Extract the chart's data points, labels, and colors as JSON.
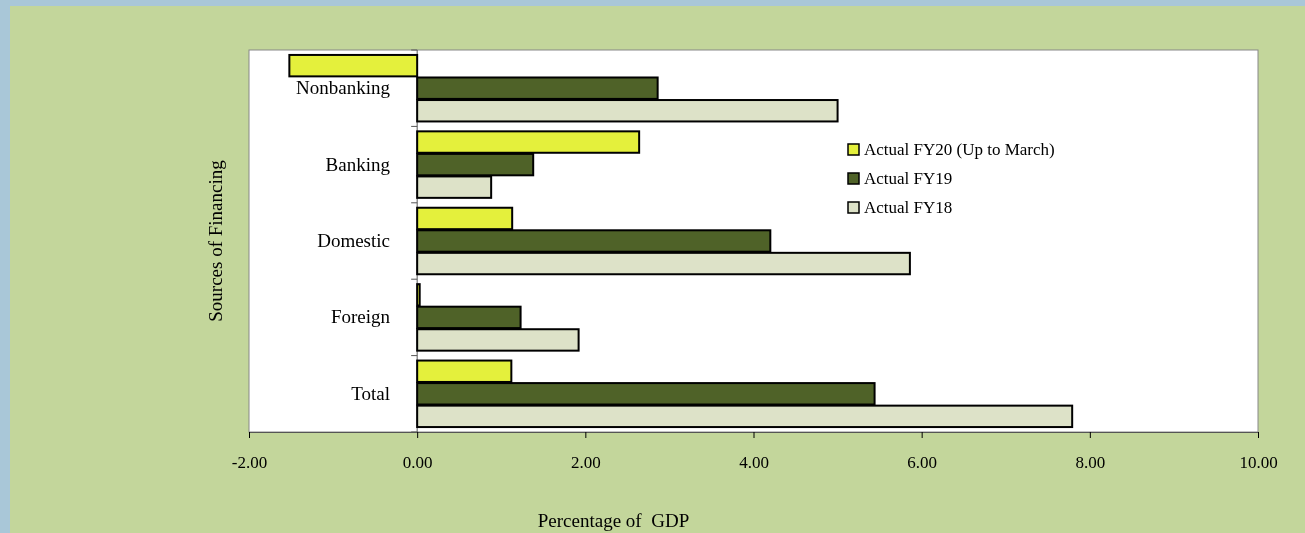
{
  "chart_data": {
    "type": "bar",
    "orientation": "horizontal",
    "xlabel": "Percentage of  GDP",
    "ylabel": "Sources of Financing",
    "categories": [
      "Nonbanking",
      "Banking",
      "Domestic",
      "Foreign",
      "Total"
    ],
    "series": [
      {
        "name": "Actual FY20 (Up to March)",
        "color": "#e4f03c",
        "values": [
          -1.52,
          2.64,
          1.13,
          0.03,
          1.12
        ]
      },
      {
        "name": "Actual FY19",
        "color": "#4f6228",
        "values": [
          2.86,
          1.38,
          4.2,
          1.23,
          5.44
        ]
      },
      {
        "name": "Actual FY18",
        "color": "#dde2c8",
        "values": [
          5.0,
          0.88,
          5.86,
          1.92,
          7.79
        ]
      }
    ],
    "xlim": [
      -2,
      10
    ],
    "xticks": [
      {
        "value": -2,
        "label": "-2.00"
      },
      {
        "value": 0,
        "label": "0.00"
      },
      {
        "value": 2,
        "label": "2.00"
      },
      {
        "value": 4,
        "label": "4.00"
      },
      {
        "value": 6,
        "label": "6.00"
      },
      {
        "value": 8,
        "label": "8.00"
      },
      {
        "value": 10,
        "label": "10.00"
      }
    ],
    "legend": "right",
    "grid": false
  }
}
